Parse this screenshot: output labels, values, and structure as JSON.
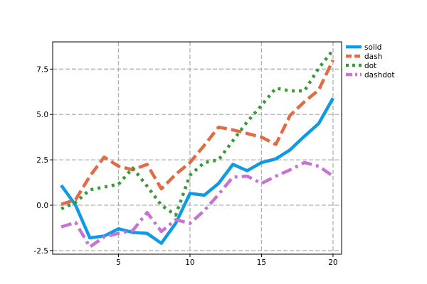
{
  "chart_data": {
    "type": "line",
    "title": "",
    "xlabel": "",
    "ylabel": "",
    "xlim": [
      0.4,
      20.6
    ],
    "ylim": [
      -2.7,
      9.0
    ],
    "xticks": [
      5,
      10,
      15,
      20
    ],
    "yticks": [
      -2.5,
      0.0,
      2.5,
      5.0,
      7.5
    ],
    "xtick_labels": [
      "5",
      "10",
      "15",
      "20"
    ],
    "ytick_labels": [
      "-2.5",
      "0.0",
      "2.5",
      "5.0",
      "7.5"
    ],
    "grid": true,
    "legend_position": "outside-top-right",
    "x": [
      1,
      2,
      3,
      4,
      5,
      6,
      7,
      8,
      9,
      10,
      11,
      12,
      13,
      14,
      15,
      16,
      17,
      18,
      19,
      20
    ],
    "series": [
      {
        "name": "solid",
        "style": "solid",
        "color": "#0f9ae6",
        "values": [
          1.1,
          0.0,
          -1.8,
          -1.7,
          -1.3,
          -1.5,
          -1.55,
          -2.1,
          -1.0,
          0.65,
          0.55,
          1.2,
          2.25,
          1.9,
          2.35,
          2.55,
          3.05,
          3.8,
          4.5,
          5.9
        ]
      },
      {
        "name": "dash",
        "style": "dash",
        "color": "#e06c45",
        "values": [
          0.05,
          0.3,
          1.6,
          2.65,
          2.15,
          1.95,
          2.25,
          0.9,
          1.7,
          2.35,
          3.3,
          4.3,
          4.15,
          3.95,
          3.75,
          3.35,
          4.95,
          5.7,
          6.35,
          8.0
        ]
      },
      {
        "name": "dot",
        "style": "dot",
        "color": "#3a9a3a",
        "values": [
          -0.2,
          0.15,
          0.85,
          1.0,
          1.15,
          2.05,
          1.05,
          0.0,
          -0.55,
          1.65,
          2.35,
          2.5,
          3.55,
          4.6,
          5.5,
          6.45,
          6.3,
          6.3,
          7.55,
          8.55
        ]
      },
      {
        "name": "dashdot",
        "style": "dashdot",
        "color": "#c773d1",
        "values": [
          -1.2,
          -0.95,
          -2.3,
          -1.75,
          -1.55,
          -1.4,
          -0.4,
          -1.45,
          -0.8,
          -1.0,
          -0.3,
          0.6,
          1.55,
          1.6,
          1.2,
          1.6,
          1.95,
          2.35,
          2.15,
          1.6
        ]
      }
    ]
  }
}
